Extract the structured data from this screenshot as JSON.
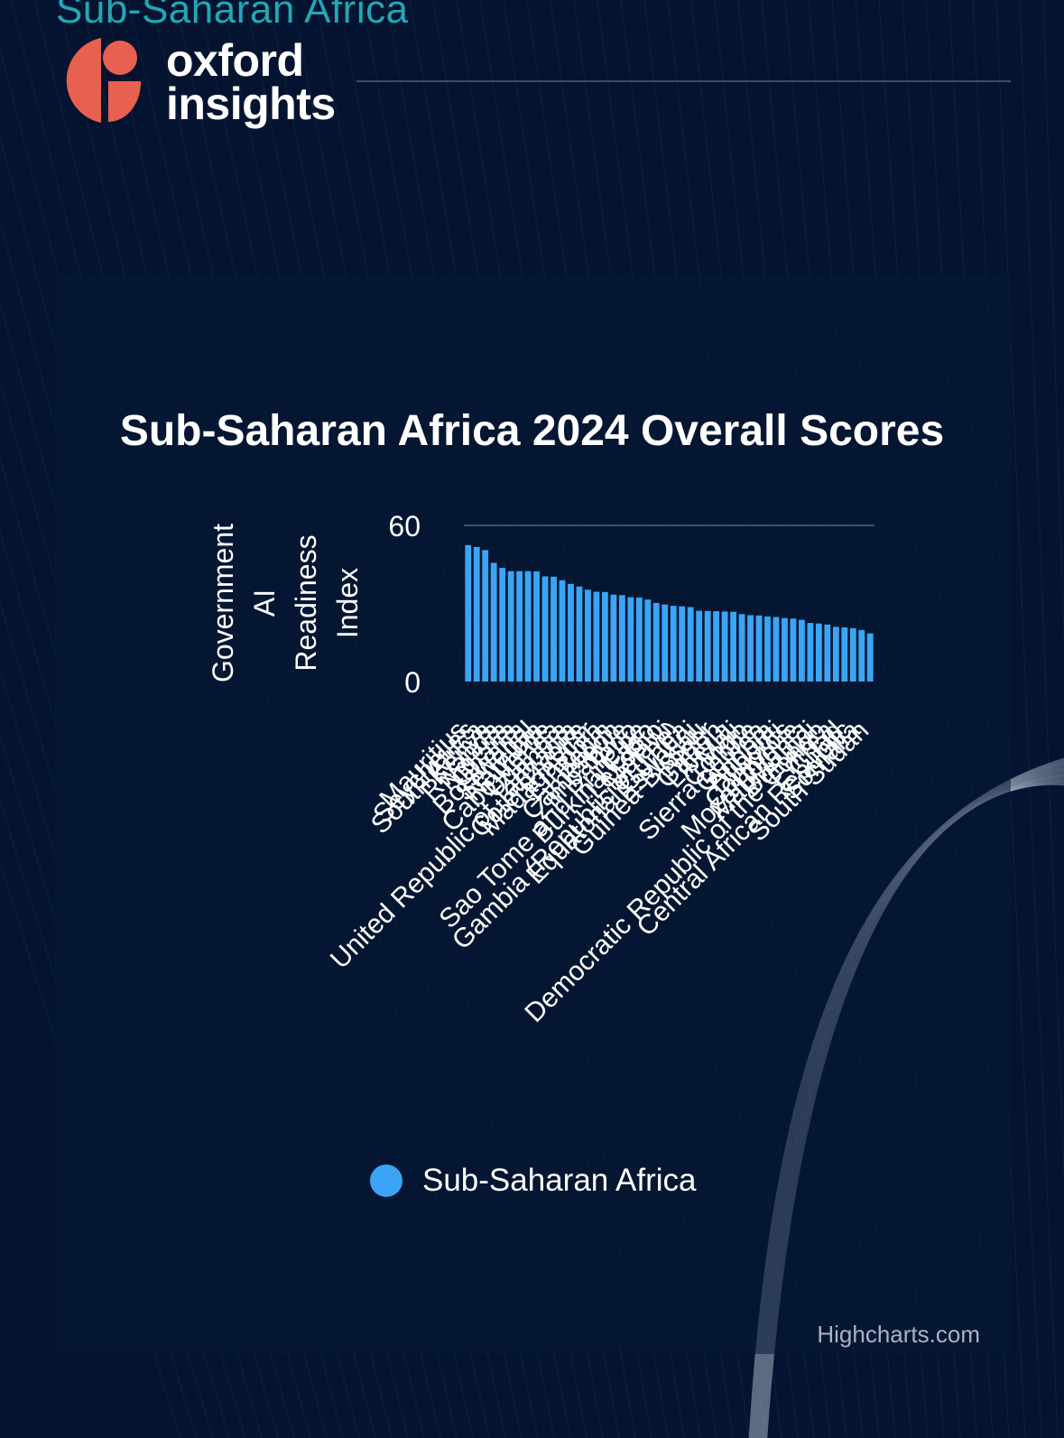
{
  "section_title": "Sub-Saharan Africa",
  "logo": {
    "line1": "oxford",
    "line2": "insights",
    "mark_color": "#e8604f"
  },
  "colors": {
    "background": "#041430",
    "accent": "#23a7b4",
    "bar": "#3ba4f4",
    "grid": "#3c4e6d"
  },
  "credits": "Highcharts.com",
  "chart_data": {
    "type": "bar",
    "title": "Sub-Saharan Africa 2024 Overall Scores",
    "xlabel": "",
    "ylabel": "Government AI Readiness Index",
    "ylim": [
      0,
      60
    ],
    "y_ticks": [
      0,
      60
    ],
    "grid": true,
    "legend_position": "bottom",
    "categories": [
      "Mauritius",
      "Seychelles",
      "South Africa",
      "Kenya",
      "Rwanda",
      "Nigeria",
      "Ghana",
      "Botswana",
      "Senegal",
      "Namibia",
      "Cabo Verde",
      "Uganda",
      "Zambia",
      "United Republic of Tanzania",
      "Cote d'Ivoire",
      "Madagascar",
      "Ethiopia",
      "Benin",
      "Cameroon",
      "Zimbabwe",
      "Togo",
      "Sao Tome and Principe",
      "Burkina Faso",
      "Lesotho",
      "Malawi",
      "Gambia (Republic of The)",
      "Equatorial Guinea",
      "Eswatini",
      "Guinea-Bissau",
      "Niger",
      "Gabon",
      "Liberia",
      "Mali",
      "Congo",
      "Sierra Leone",
      "Guinea",
      "Angola",
      "Djibouti",
      "Comoros",
      "Mozambique",
      "Mauritania",
      "Burundi",
      "Democratic Republic of the Congo",
      "Eritrea",
      "Chad",
      "Central African Republic",
      "Somalia",
      "South Sudan"
    ],
    "series": [
      {
        "name": "Sub-Saharan Africa",
        "color": "#3ba4f4",
        "values": [
          52.4,
          51.7,
          50.5,
          45.6,
          43.7,
          42.4,
          42.4,
          42.4,
          42.3,
          40.4,
          40.3,
          38.9,
          37.5,
          36.5,
          35.3,
          34.5,
          34.4,
          33.4,
          33.2,
          32.4,
          32.3,
          31.5,
          30.2,
          29.6,
          29.1,
          28.9,
          28.6,
          27.2,
          27.1,
          27.0,
          26.9,
          26.8,
          25.9,
          25.5,
          25.4,
          25.0,
          24.8,
          24.4,
          24.2,
          23.7,
          22.5,
          22.3,
          21.9,
          21.0,
          20.8,
          20.5,
          19.8,
          18.5
        ]
      }
    ]
  }
}
